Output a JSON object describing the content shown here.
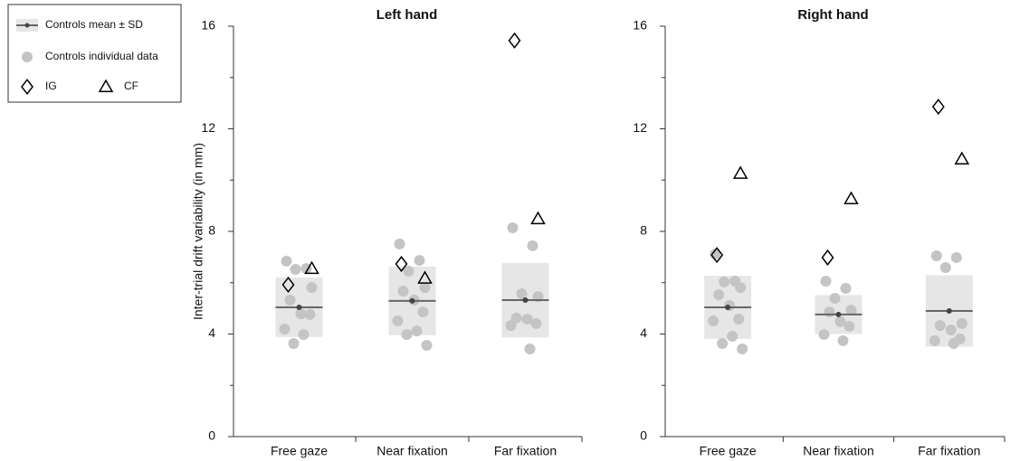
{
  "legend": {
    "entries": [
      {
        "name": "Controls mean ± SD",
        "color": "#666666",
        "fill": "#e6e6e6"
      },
      {
        "name": "Controls individual data",
        "color": "#c4c4c4"
      },
      {
        "name": "IG",
        "color": "#000000"
      },
      {
        "name": "CF",
        "color": "#000000"
      }
    ],
    "corner": "upper left"
  },
  "chart_data": [
    {
      "type": "strip",
      "title": "Left hand",
      "ylabel": "Inter-trial drift variability (in mm)",
      "categories": [
        "Free gaze",
        "Near fixation",
        "Far fixation"
      ],
      "ylim": [
        0,
        16
      ],
      "yticks": [
        0,
        4,
        8,
        12,
        16
      ],
      "controls_mean": [
        5.04,
        5.29,
        5.32
      ],
      "controls_sd": [
        1.16,
        1.34,
        1.45
      ],
      "controls_individual": [
        [
          6.84,
          6.55,
          6.52,
          5.81,
          5.32,
          4.79,
          4.76,
          4.19,
          3.98,
          3.63
        ],
        [
          7.51,
          6.87,
          6.45,
          5.81,
          5.67,
          5.32,
          4.86,
          4.51,
          4.12,
          3.98,
          3.56
        ],
        [
          8.14,
          7.44,
          5.57,
          5.46,
          4.62,
          4.58,
          4.41,
          4.33,
          3.42
        ]
      ],
      "IG": [
        5.92,
        6.73,
        15.44
      ],
      "CF": [
        6.55,
        6.17,
        8.49
      ]
    },
    {
      "type": "strip",
      "title": "Right hand",
      "categories": [
        "Free gaze",
        "Near fixation",
        "Far fixation"
      ],
      "ylim": [
        0,
        16
      ],
      "yticks": [
        0,
        4,
        8,
        12,
        16
      ],
      "controls_mean": [
        5.04,
        4.76,
        4.9
      ],
      "controls_sd": [
        1.23,
        0.76,
        1.39
      ],
      "controls_individual": [
        [
          7.12,
          6.06,
          6.03,
          5.81,
          5.53,
          5.11,
          4.58,
          4.51,
          3.91,
          3.63,
          3.42
        ],
        [
          6.06,
          5.78,
          5.39,
          4.93,
          4.86,
          4.48,
          4.3,
          3.98,
          3.74
        ],
        [
          7.05,
          6.98,
          6.59,
          4.41,
          4.33,
          4.16,
          3.81,
          3.74,
          3.63
        ]
      ],
      "IG": [
        7.08,
        6.98,
        12.86
      ],
      "CF": [
        10.26,
        9.27,
        10.82
      ]
    }
  ]
}
